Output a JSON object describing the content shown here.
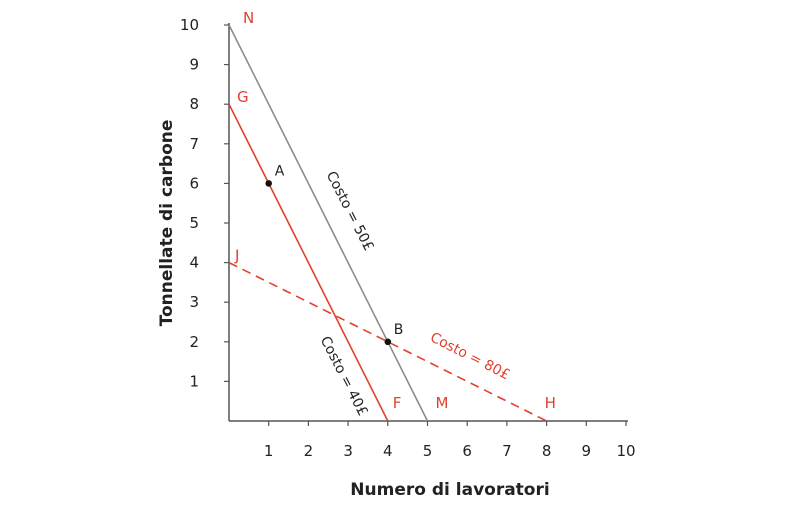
{
  "chart_data": {
    "type": "line",
    "xlabel": "Numero di lavoratori",
    "ylabel": "Tonnellate di carbone",
    "xlim": [
      0,
      10
    ],
    "ylim": [
      0,
      10
    ],
    "xticks": [
      "1",
      "2",
      "3",
      "4",
      "5",
      "6",
      "7",
      "8",
      "9",
      "10"
    ],
    "yticks": [
      "1",
      "2",
      "3",
      "4",
      "5",
      "6",
      "7",
      "8",
      "9",
      "10"
    ],
    "grid": false,
    "series": [
      {
        "name": "Costo = 50£",
        "points": [
          [
            0,
            10
          ],
          [
            5,
            0
          ]
        ],
        "color": "#8c8c8c",
        "style": "solid",
        "start_label": "N",
        "end_label": "M"
      },
      {
        "name": "Costo = 40£",
        "points": [
          [
            0,
            8
          ],
          [
            4,
            0
          ]
        ],
        "color": "#e0412c",
        "style": "solid",
        "start_label": "G",
        "end_label": "F"
      },
      {
        "name": "Costo = 80£",
        "points": [
          [
            0,
            4
          ],
          [
            8,
            0
          ]
        ],
        "color": "#e0412c",
        "style": "dashed",
        "start_label": "J",
        "end_label": "H"
      }
    ],
    "points": [
      {
        "label": "A",
        "x": 1,
        "y": 6
      },
      {
        "label": "B",
        "x": 4,
        "y": 2
      }
    ],
    "colors": {
      "axis": "#555555",
      "accent": "#e0412c",
      "grey": "#8c8c8c",
      "text": "#222222"
    }
  }
}
